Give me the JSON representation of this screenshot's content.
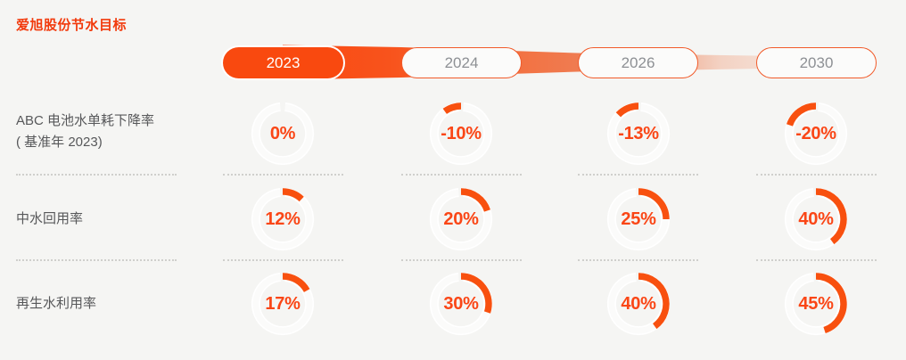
{
  "title": "爱旭股份节水目标",
  "timeline": {
    "years": [
      "2023",
      "2024",
      "2026",
      "2030"
    ],
    "active_year": "2023"
  },
  "rows": [
    {
      "label_line1": "ABC 电池水单耗下降率",
      "label_line2": "( 基准年 2023)",
      "cells": [
        {
          "display": "0%",
          "value": 0
        },
        {
          "display": "-10%",
          "value": -10
        },
        {
          "display": "-13%",
          "value": -13
        },
        {
          "display": "-20%",
          "value": -20
        }
      ]
    },
    {
      "label_line1": "中水回用率",
      "label_line2": "",
      "cells": [
        {
          "display": "12%",
          "value": 12
        },
        {
          "display": "20%",
          "value": 20
        },
        {
          "display": "25%",
          "value": 25
        },
        {
          "display": "40%",
          "value": 40
        }
      ]
    },
    {
      "label_line1": "再生水利用率",
      "label_line2": "",
      "cells": [
        {
          "display": "17%",
          "value": 17
        },
        {
          "display": "30%",
          "value": 30
        },
        {
          "display": "40%",
          "value": 40
        },
        {
          "display": "45%",
          "value": 45
        }
      ]
    }
  ],
  "chart_data": {
    "type": "table",
    "title": "爱旭股份节水目标",
    "gauge_style": "donut ring, arc starts at 12 o'clock; positive values sweep clockwise, negative values sweep counterclockwise; arc extent = |value| percent of circle",
    "categories": [
      "2023",
      "2024",
      "2026",
      "2030"
    ],
    "series": [
      {
        "name": "ABC 电池水单耗下降率 ( 基准年 2023)",
        "values": [
          0,
          -10,
          -13,
          -20
        ]
      },
      {
        "name": "中水回用率",
        "values": [
          12,
          20,
          25,
          40
        ]
      },
      {
        "name": "再生水利用率",
        "values": [
          17,
          30,
          40,
          45
        ]
      }
    ],
    "value_unit": "%",
    "legend_position": "none",
    "grid": "dotted row separators"
  },
  "colors": {
    "background": "#F5F5F3",
    "accent_arc": "#F8500F",
    "title_text": "#F23A0C",
    "pill_active_bg": "#F9490F",
    "pill_border": "#F15A29",
    "year_text_inactive": "#8D9094",
    "label_text": "#57585A",
    "percent_text": "#FA4616",
    "ring_white": "#FFFFFF",
    "dotted_line": "#CFCFCC"
  }
}
